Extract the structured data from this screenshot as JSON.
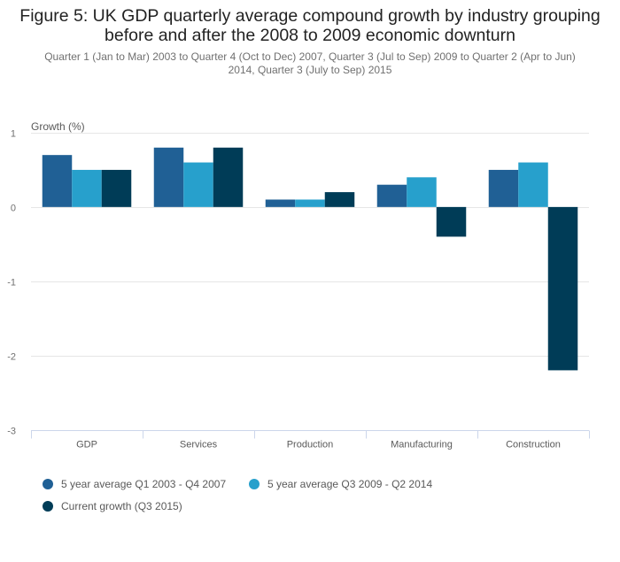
{
  "title_line1": "Figure 5: UK GDP quarterly average compound growth by industry grouping",
  "title_line2": "before and after the 2008 to 2009 economic downturn",
  "subtitle_line1": "Quarter 1 (Jan to Mar) 2003 to Quarter 4 (Oct to Dec) 2007, Quarter 3 (Jul to Sep) 2009 to Quarter 2 (Apr to Jun)",
  "subtitle_line2": "2014, Quarter 3 (July to Sep) 2015",
  "chart_data": {
    "type": "bar",
    "title": "Figure 5: UK GDP quarterly average compound growth by industry grouping before and after the 2008 to 2009 economic downturn",
    "subtitle": "Quarter 1 (Jan to Mar) 2003 to Quarter 4 (Oct to Dec) 2007, Quarter 3 (Jul to Sep) 2009 to Quarter 2 (Apr to Jun) 2014, Quarter 3 (July to Sep) 2015",
    "xlabel": "",
    "ylabel": "Growth (%)",
    "ylim": [
      -3,
      1
    ],
    "yticks": [
      1,
      0,
      -1,
      -2,
      -3
    ],
    "ytick_labels": [
      "1",
      "0",
      "-1",
      "-2",
      "-3"
    ],
    "grid": true,
    "legend_position": "bottom-left",
    "categories": [
      "GDP",
      "Services",
      "Production",
      "Manufacturing",
      "Construction"
    ],
    "series": [
      {
        "name": "5 year average Q1 2003 - Q4 2007",
        "color": "#206095",
        "values": [
          0.7,
          0.8,
          0.1,
          0.3,
          0.5
        ]
      },
      {
        "name": "5 year average Q3 2009 - Q2 2014",
        "color": "#27a0cc",
        "values": [
          0.5,
          0.6,
          0.1,
          0.4,
          0.6
        ]
      },
      {
        "name": "Current growth (Q3 2015)",
        "color": "#003c57",
        "values": [
          0.5,
          0.8,
          0.2,
          -0.4,
          -2.2
        ]
      }
    ]
  }
}
